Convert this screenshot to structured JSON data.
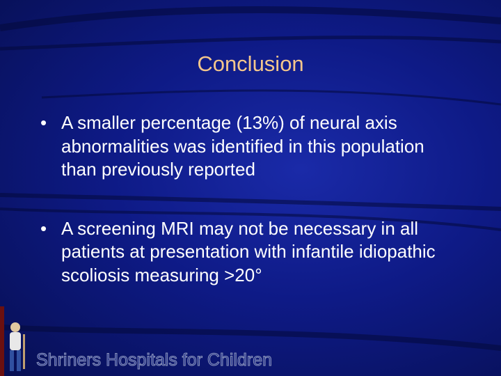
{
  "header": {
    "title": "Conclusion"
  },
  "bullets": [
    "A smaller percentage (13%) of neural axis abnormalities was identified in this population than previously reported",
    "A screening MRI may not be necessary in all patients at presentation with infantile idiopathic scoliosis measuring >20°"
  ],
  "footer": {
    "text": "Shriners Hospitals for Children"
  }
}
